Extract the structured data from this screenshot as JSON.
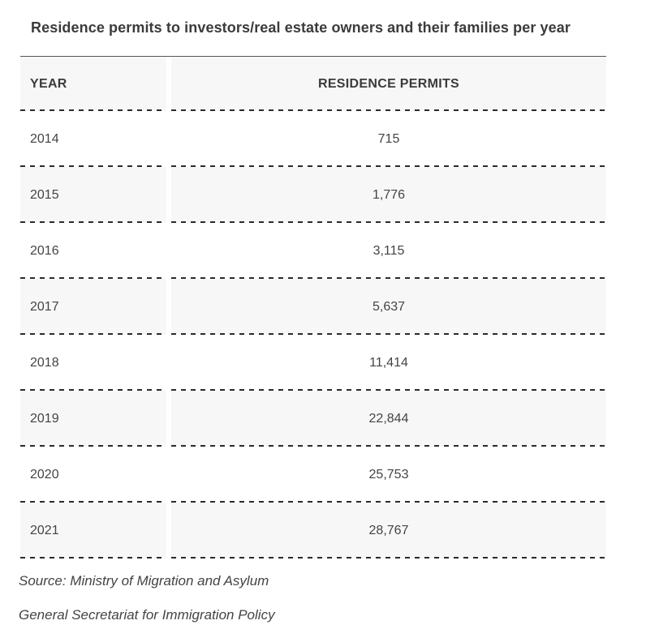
{
  "chart_data": {
    "type": "table",
    "title": "Residence permits to investors/real estate owners and their families per year",
    "columns": [
      "YEAR",
      "RESIDENCE PERMITS"
    ],
    "rows": [
      [
        "2014",
        "715"
      ],
      [
        "2015",
        "1,776"
      ],
      [
        "2016",
        "3,115"
      ],
      [
        "2017",
        "5,637"
      ],
      [
        "2018",
        "11,414"
      ],
      [
        "2019",
        "22,844"
      ],
      [
        "2020",
        "25,753"
      ],
      [
        "2021",
        "28,767"
      ]
    ],
    "x": [
      2014,
      2015,
      2016,
      2017,
      2018,
      2019,
      2020,
      2021
    ],
    "values": [
      715,
      1776,
      3115,
      5637,
      11414,
      22844,
      25753,
      28767
    ]
  },
  "source": {
    "line1": "Source: Ministry of Migration and Asylum",
    "line2": "General Secretariat for Immigration Policy"
  },
  "colors": {
    "text": "#3b3b3b",
    "stripe": "#f7f7f7",
    "rule": "#2b2b2b"
  }
}
